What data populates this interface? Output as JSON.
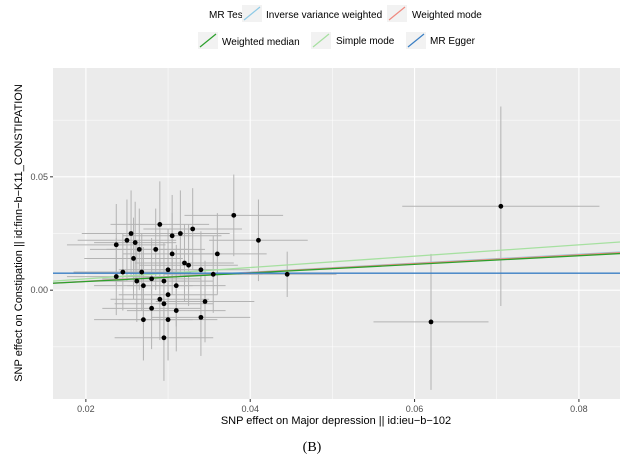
{
  "chart_data": {
    "type": "scatter",
    "xlabel": "SNP effect on Major depression || id:ieu−b−102",
    "ylabel": "SNP effect on Constipation || id:finn−b−K11_CONSTIPATION",
    "caption": "(B)",
    "xlim": [
      0.016,
      0.085
    ],
    "ylim": [
      -0.048,
      0.098
    ],
    "x_ticks": [
      0.02,
      0.04,
      0.06,
      0.08
    ],
    "x_tick_labels": [
      "0.02",
      "0.04",
      "0.06",
      "0.08"
    ],
    "y_ticks": [
      0.0,
      0.05
    ],
    "y_tick_labels": [
      "0.00",
      "0.05"
    ],
    "grid": true,
    "legend": {
      "title": "MR Test:",
      "position": "top",
      "entries": [
        {
          "name": "Inverse variance weighted",
          "color": "#8ecae6"
        },
        {
          "name": "Weighted mode",
          "color": "#f08a80"
        },
        {
          "name": "Weighted median",
          "color": "#2ca02c"
        },
        {
          "name": "Simple mode",
          "color": "#a6e0a0"
        },
        {
          "name": "MR Egger",
          "color": "#3a7fc4"
        }
      ]
    },
    "lines": [
      {
        "name": "Inverse variance weighted",
        "color": "#8ecae6",
        "intercept": 0.0,
        "slope": 0.198
      },
      {
        "name": "Weighted mode",
        "color": "#f08a80",
        "intercept": 0.0,
        "slope": 0.195
      },
      {
        "name": "Weighted median",
        "color": "#2ca02c",
        "intercept": 0.0,
        "slope": 0.19
      },
      {
        "name": "Simple mode",
        "color": "#a6e0a0",
        "intercept": 0.0,
        "slope": 0.25
      },
      {
        "name": "MR Egger",
        "color": "#3a7fc4",
        "intercept": 0.0075,
        "slope": 0.0
      }
    ],
    "points": [
      {
        "x": 0.0237,
        "y": 0.02,
        "xerr": 0.006,
        "yerr": 0.018
      },
      {
        "x": 0.025,
        "y": 0.022,
        "xerr": 0.006,
        "yerr": 0.018
      },
      {
        "x": 0.0255,
        "y": 0.025,
        "xerr": 0.006,
        "yerr": 0.019
      },
      {
        "x": 0.026,
        "y": 0.021,
        "xerr": 0.005,
        "yerr": 0.018
      },
      {
        "x": 0.0258,
        "y": 0.014,
        "xerr": 0.006,
        "yerr": 0.018
      },
      {
        "x": 0.0265,
        "y": 0.018,
        "xerr": 0.006,
        "yerr": 0.018
      },
      {
        "x": 0.0237,
        "y": 0.006,
        "xerr": 0.006,
        "yerr": 0.017
      },
      {
        "x": 0.0245,
        "y": 0.008,
        "xerr": 0.006,
        "yerr": 0.017
      },
      {
        "x": 0.0262,
        "y": 0.004,
        "xerr": 0.006,
        "yerr": 0.018
      },
      {
        "x": 0.0268,
        "y": 0.008,
        "xerr": 0.006,
        "yerr": 0.017
      },
      {
        "x": 0.027,
        "y": 0.002,
        "xerr": 0.006,
        "yerr": 0.017
      },
      {
        "x": 0.028,
        "y": 0.005,
        "xerr": 0.006,
        "yerr": 0.018
      },
      {
        "x": 0.0285,
        "y": 0.018,
        "xerr": 0.006,
        "yerr": 0.018
      },
      {
        "x": 0.029,
        "y": 0.029,
        "xerr": 0.006,
        "yerr": 0.019
      },
      {
        "x": 0.0295,
        "y": 0.004,
        "xerr": 0.006,
        "yerr": 0.017
      },
      {
        "x": 0.03,
        "y": 0.009,
        "xerr": 0.006,
        "yerr": 0.018
      },
      {
        "x": 0.0305,
        "y": 0.016,
        "xerr": 0.006,
        "yerr": 0.018
      },
      {
        "x": 0.0305,
        "y": 0.024,
        "xerr": 0.006,
        "yerr": 0.018
      },
      {
        "x": 0.031,
        "y": 0.002,
        "xerr": 0.006,
        "yerr": 0.018
      },
      {
        "x": 0.0315,
        "y": 0.025,
        "xerr": 0.006,
        "yerr": 0.019
      },
      {
        "x": 0.032,
        "y": 0.012,
        "xerr": 0.006,
        "yerr": 0.017
      },
      {
        "x": 0.0325,
        "y": 0.011,
        "xerr": 0.006,
        "yerr": 0.018
      },
      {
        "x": 0.033,
        "y": 0.027,
        "xerr": 0.006,
        "yerr": 0.018
      },
      {
        "x": 0.034,
        "y": 0.009,
        "xerr": 0.006,
        "yerr": 0.017
      },
      {
        "x": 0.036,
        "y": 0.016,
        "xerr": 0.006,
        "yerr": 0.018
      },
      {
        "x": 0.0355,
        "y": 0.007,
        "xerr": 0.006,
        "yerr": 0.017
      },
      {
        "x": 0.038,
        "y": 0.033,
        "xerr": 0.006,
        "yerr": 0.018
      },
      {
        "x": 0.041,
        "y": 0.022,
        "xerr": 0.006,
        "yerr": 0.018
      },
      {
        "x": 0.0445,
        "y": 0.007,
        "xerr": 0.006,
        "yerr": 0.01
      },
      {
        "x": 0.028,
        "y": -0.008,
        "xerr": 0.006,
        "yerr": 0.018
      },
      {
        "x": 0.029,
        "y": -0.004,
        "xerr": 0.006,
        "yerr": 0.018
      },
      {
        "x": 0.0295,
        "y": -0.006,
        "xerr": 0.006,
        "yerr": 0.017
      },
      {
        "x": 0.03,
        "y": -0.002,
        "xerr": 0.006,
        "yerr": 0.017
      },
      {
        "x": 0.027,
        "y": -0.013,
        "xerr": 0.006,
        "yerr": 0.018
      },
      {
        "x": 0.03,
        "y": -0.013,
        "xerr": 0.006,
        "yerr": 0.018
      },
      {
        "x": 0.031,
        "y": -0.009,
        "xerr": 0.006,
        "yerr": 0.018
      },
      {
        "x": 0.0295,
        "y": -0.021,
        "xerr": 0.006,
        "yerr": 0.019
      },
      {
        "x": 0.0345,
        "y": -0.005,
        "xerr": 0.006,
        "yerr": 0.018
      },
      {
        "x": 0.034,
        "y": -0.012,
        "xerr": 0.006,
        "yerr": 0.017
      },
      {
        "x": 0.062,
        "y": -0.014,
        "xerr": 0.007,
        "yerr": 0.03
      },
      {
        "x": 0.0705,
        "y": 0.037,
        "xerr": 0.012,
        "yerr": 0.044
      }
    ]
  }
}
